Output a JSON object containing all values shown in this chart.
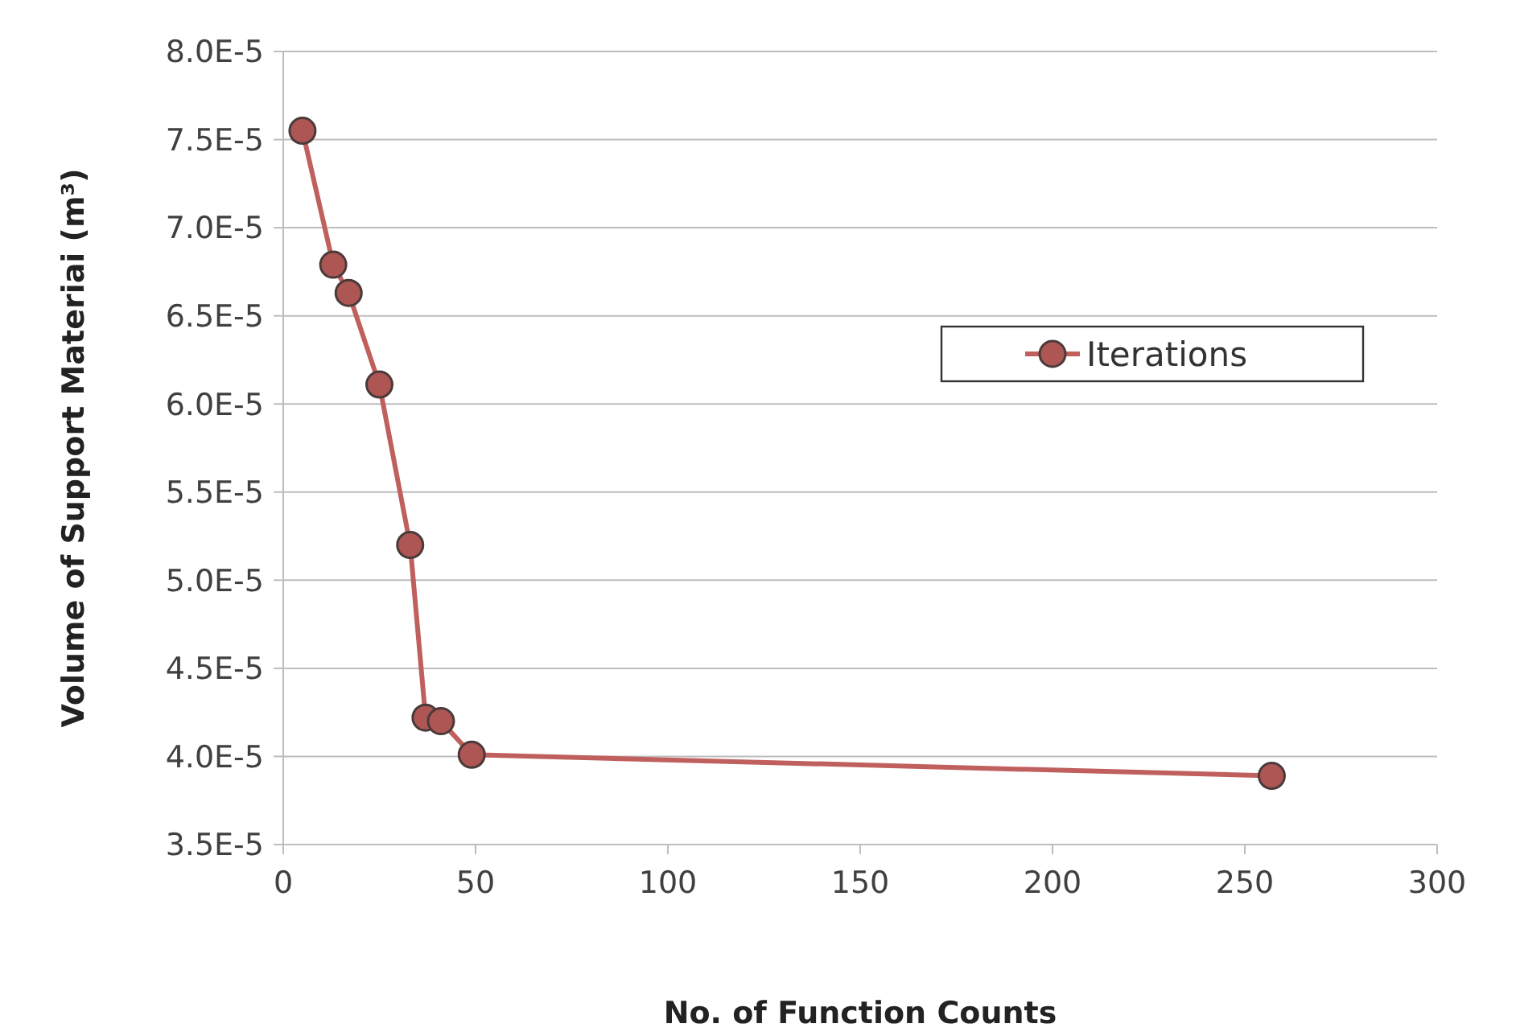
{
  "chart_data": {
    "type": "line",
    "xlabel": "No. of Function Counts",
    "ylabel": "Volume of Support Materiai (m³)",
    "x": [
      5,
      13,
      17,
      25,
      33,
      37,
      41,
      49,
      257
    ],
    "series": [
      {
        "name": "Iterations",
        "color": "#c0605e",
        "values": [
          7.55e-05,
          6.79e-05,
          6.63e-05,
          6.11e-05,
          5.2e-05,
          4.22e-05,
          4.2e-05,
          4.01e-05,
          3.89e-05
        ]
      }
    ],
    "xlim": [
      0,
      300
    ],
    "xticks": [
      0,
      50,
      100,
      150,
      200,
      250,
      300
    ],
    "ylim": [
      3.5e-05,
      8e-05
    ],
    "yticks": [
      {
        "value": 3.5e-05,
        "label": "3.5E-5"
      },
      {
        "value": 4e-05,
        "label": "4.0E-5"
      },
      {
        "value": 4.5e-05,
        "label": "4.5E-5"
      },
      {
        "value": 5e-05,
        "label": "5.0E-5"
      },
      {
        "value": 5.5e-05,
        "label": "5.5E-5"
      },
      {
        "value": 6e-05,
        "label": "6.0E-5"
      },
      {
        "value": 6.5e-05,
        "label": "6.5E-5"
      },
      {
        "value": 7e-05,
        "label": "7.0E-5"
      },
      {
        "value": 7.5e-05,
        "label": "7.5E-5"
      },
      {
        "value": 8e-05,
        "label": "8.0E-5"
      }
    ],
    "grid": "y",
    "legend": "right",
    "marker": "circle",
    "line_style": "solid"
  }
}
